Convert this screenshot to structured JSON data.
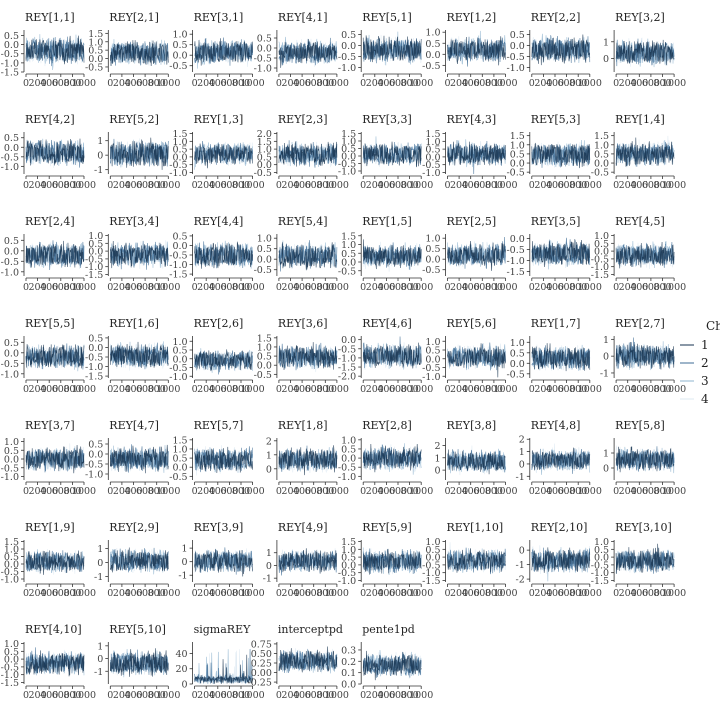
{
  "chart_data": {
    "type": "line",
    "description_free": true,
    "x_tick_labels": [
      "0",
      "200",
      "400",
      "600",
      "800",
      "1000"
    ],
    "xlim": [
      0,
      1000
    ],
    "grid": false,
    "legend": {
      "title": "Chain",
      "placement": "right",
      "entries": [
        {
          "label": "1",
          "color": "#16324f"
        },
        {
          "label": "2",
          "color": "#3d6b94"
        },
        {
          "label": "3",
          "color": "#8fb4cf"
        },
        {
          "label": "4",
          "color": "#dde9f2"
        }
      ]
    },
    "panels": [
      {
        "title": "REY[1,1]",
        "ylim": [
          -1.5,
          0.8
        ],
        "ticks": [
          -1.5,
          -1.0,
          -0.5,
          0.0,
          0.5
        ],
        "tick_labels": [
          "-1.5",
          "-1.0",
          "-0.5",
          "0.0",
          "0.5"
        ],
        "center": -0.35,
        "sd": 0.45
      },
      {
        "title": "REY[2,1]",
        "ylim": [
          -0.8,
          1.7
        ],
        "ticks": [
          -0.5,
          0.0,
          0.5,
          1.0,
          1.5
        ],
        "tick_labels": [
          "-0.5",
          "0.0",
          "0.5",
          "1.0",
          "1.5"
        ],
        "center": 0.3,
        "sd": 0.45
      },
      {
        "title": "REY[3,1]",
        "ylim": [
          -0.8,
          1.2
        ],
        "ticks": [
          -0.5,
          0.0,
          0.5,
          1.0
        ],
        "tick_labels": [
          "-0.5",
          "0.0",
          "0.5",
          "1.0"
        ],
        "center": 0.15,
        "sd": 0.35
      },
      {
        "title": "REY[4,1]",
        "ylim": [
          -1.2,
          0.9
        ],
        "ticks": [
          -1.0,
          -0.5,
          0.0,
          0.5
        ],
        "tick_labels": [
          "-1.0",
          "-0.5",
          "0.0",
          "0.5"
        ],
        "center": -0.2,
        "sd": 0.35
      },
      {
        "title": "REY[5,1]",
        "ylim": [
          -1.2,
          0.7
        ],
        "ticks": [
          -1.0,
          -0.5,
          0.0,
          0.5
        ],
        "tick_labels": [
          "-1.0",
          "-0.5",
          "0.0",
          "0.5"
        ],
        "center": -0.2,
        "sd": 0.35
      },
      {
        "title": "REY[1,2]",
        "ylim": [
          -0.8,
          1.1
        ],
        "ticks": [
          -0.5,
          0.0,
          0.5,
          1.0
        ],
        "tick_labels": [
          "-0.5",
          "0.0",
          "0.5",
          "1.0"
        ],
        "center": 0.2,
        "sd": 0.35
      },
      {
        "title": "REY[2,2]",
        "ylim": [
          -1.2,
          0.7
        ],
        "ticks": [
          -1.0,
          -0.5,
          0.0,
          0.5
        ],
        "tick_labels": [
          "-1.0",
          "-0.5",
          "0.0",
          "0.5"
        ],
        "center": -0.2,
        "sd": 0.35
      },
      {
        "title": "REY[3,2]",
        "ylim": [
          -0.8,
          1.7
        ],
        "ticks": [
          0,
          1
        ],
        "tick_labels": [
          "0",
          "1"
        ],
        "center": 0.35,
        "sd": 0.45
      },
      {
        "title": "REY[4,2]",
        "ylim": [
          -1.4,
          0.8
        ],
        "ticks": [
          -1.0,
          -0.5,
          0.0,
          0.5
        ],
        "tick_labels": [
          "-1.0",
          "-0.5",
          "0.0",
          "0.5"
        ],
        "center": -0.3,
        "sd": 0.4
      },
      {
        "title": "REY[5,2]",
        "ylim": [
          -1.3,
          1.6
        ],
        "ticks": [
          -1,
          0,
          1
        ],
        "tick_labels": [
          "-1",
          "0",
          "1"
        ],
        "center": 0.1,
        "sd": 0.55
      },
      {
        "title": "REY[1,3]",
        "ylim": [
          -1.1,
          1.6
        ],
        "ticks": [
          -1.0,
          -0.5,
          0.0,
          0.5,
          1.0,
          1.5
        ],
        "tick_labels": [
          "-1.0",
          "-0.5",
          "0.0",
          "0.5",
          "1.0",
          "1.5"
        ],
        "center": 0.2,
        "sd": 0.45
      },
      {
        "title": "REY[2,3]",
        "ylim": [
          -0.6,
          2.1
        ],
        "ticks": [
          -0.5,
          0.0,
          0.5,
          1.0,
          1.5,
          2.0
        ],
        "tick_labels": [
          "-0.5",
          "0.0",
          "0.5",
          "1.0",
          "1.5",
          "2.0"
        ],
        "center": 0.65,
        "sd": 0.45
      },
      {
        "title": "REY[3,3]",
        "ylim": [
          -1.2,
          1.6
        ],
        "ticks": [
          -1.0,
          -0.5,
          0.0,
          0.5,
          1.0,
          1.5
        ],
        "tick_labels": [
          "-1.0",
          "-0.5",
          "0.0",
          "0.5",
          "1.0",
          "1.5"
        ],
        "center": 0.1,
        "sd": 0.45
      },
      {
        "title": "REY[4,3]",
        "ylim": [
          -1.1,
          1.6
        ],
        "ticks": [
          -1.0,
          -0.5,
          0.0,
          0.5,
          1.0,
          1.5
        ],
        "tick_labels": [
          "-1.0",
          "-0.5",
          "0.0",
          "0.5",
          "1.0",
          "1.5"
        ],
        "center": 0.2,
        "sd": 0.45
      },
      {
        "title": "REY[5,3]",
        "ylim": [
          -0.6,
          1.7
        ],
        "ticks": [
          -0.5,
          0.0,
          0.5,
          1.0,
          1.5
        ],
        "tick_labels": [
          "-0.5",
          "0.0",
          "0.5",
          "1.0",
          "1.5"
        ],
        "center": 0.45,
        "sd": 0.4
      },
      {
        "title": "REY[1,4]",
        "ylim": [
          -0.6,
          1.7
        ],
        "ticks": [
          -0.5,
          0.0,
          0.5,
          1.0,
          1.5
        ],
        "tick_labels": [
          "-0.5",
          "0.0",
          "0.5",
          "1.0",
          "1.5"
        ],
        "center": 0.5,
        "sd": 0.4
      },
      {
        "title": "REY[2,4]",
        "ylim": [
          -1.2,
          0.8
        ],
        "ticks": [
          -1.0,
          -0.5,
          0.0,
          0.5
        ],
        "tick_labels": [
          "-1.0",
          "-0.5",
          "0.0",
          "0.5"
        ],
        "center": -0.2,
        "sd": 0.35
      },
      {
        "title": "REY[3,4]",
        "ylim": [
          -1.6,
          1.1
        ],
        "ticks": [
          -1.5,
          -1.0,
          -0.5,
          0.0,
          0.5,
          1.0
        ],
        "tick_labels": [
          "-1.5",
          "-1.0",
          "-0.5",
          "0.0",
          "0.5",
          "1.0"
        ],
        "center": -0.25,
        "sd": 0.45
      },
      {
        "title": "REY[4,4]",
        "ylim": [
          -1.6,
          0.6
        ],
        "ticks": [
          -1.5,
          -1.0,
          -0.5,
          0.0,
          0.5
        ],
        "tick_labels": [
          "-1.5",
          "-1.0",
          "-0.5",
          "0.0",
          "0.5"
        ],
        "center": -0.5,
        "sd": 0.4
      },
      {
        "title": "REY[5,4]",
        "ylim": [
          -0.8,
          1.2
        ],
        "ticks": [
          -0.5,
          0.0,
          0.5,
          1.0
        ],
        "tick_labels": [
          "-0.5",
          "0.0",
          "0.5",
          "1.0"
        ],
        "center": 0.15,
        "sd": 0.35
      },
      {
        "title": "REY[1,5]",
        "ylim": [
          -0.8,
          1.6
        ],
        "ticks": [
          -0.5,
          0.0,
          0.5,
          1.0,
          1.5
        ],
        "tick_labels": [
          "-0.5",
          "0.0",
          "0.5",
          "1.0",
          "1.5"
        ],
        "center": 0.35,
        "sd": 0.4
      },
      {
        "title": "REY[2,5]",
        "ylim": [
          -0.8,
          1.2
        ],
        "ticks": [
          -0.5,
          0.0,
          0.5,
          1.0
        ],
        "tick_labels": [
          "-0.5",
          "0.0",
          "0.5",
          "1.0"
        ],
        "center": 0.2,
        "sd": 0.35
      },
      {
        "title": "REY[3,5]",
        "ylim": [
          -1.7,
          0.2
        ],
        "ticks": [
          -1.5,
          -1.0,
          -0.5,
          0.0
        ],
        "tick_labels": [
          "-1.5",
          "-1.0",
          "-0.5",
          "0.0"
        ],
        "center": -0.7,
        "sd": 0.35
      },
      {
        "title": "REY[4,5]",
        "ylim": [
          -1.6,
          1.1
        ],
        "ticks": [
          -1.5,
          -1.0,
          -0.5,
          0.0,
          0.5,
          1.0
        ],
        "tick_labels": [
          "-1.5",
          "-1.0",
          "-0.5",
          "0.0",
          "0.5",
          "1.0"
        ],
        "center": -0.25,
        "sd": 0.45
      },
      {
        "title": "REY[5,5]",
        "ylim": [
          -1.2,
          0.8
        ],
        "ticks": [
          -1.0,
          -0.5,
          0.0,
          0.5
        ],
        "tick_labels": [
          "-1.0",
          "-0.5",
          "0.0",
          "0.5"
        ],
        "center": -0.2,
        "sd": 0.35
      },
      {
        "title": "REY[1,6]",
        "ylim": [
          -1.6,
          0.6
        ],
        "ticks": [
          -1.5,
          -1.0,
          -0.5,
          0.0,
          0.5
        ],
        "tick_labels": [
          "-1.5",
          "-1.0",
          "-0.5",
          "0.0",
          "0.5"
        ],
        "center": -0.45,
        "sd": 0.4
      },
      {
        "title": "REY[2,6]",
        "ylim": [
          -1.1,
          1.3
        ],
        "ticks": [
          -1.0,
          -0.5,
          0.0,
          0.5,
          1.0
        ],
        "tick_labels": [
          "-1.0",
          "-0.5",
          "0.0",
          "0.5",
          "1.0"
        ],
        "center": -0.1,
        "sd": 0.35
      },
      {
        "title": "REY[3,6]",
        "ylim": [
          -0.7,
          1.6
        ],
        "ticks": [
          -0.5,
          0.0,
          0.5,
          1.0,
          1.5
        ],
        "tick_labels": [
          "-0.5",
          "0.0",
          "0.5",
          "1.0",
          "1.5"
        ],
        "center": 0.45,
        "sd": 0.4
      },
      {
        "title": "REY[4,6]",
        "ylim": [
          -2.1,
          0.2
        ],
        "ticks": [
          -2.0,
          -1.5,
          -1.0,
          -0.5,
          0.0
        ],
        "tick_labels": [
          "-2.0",
          "-1.5",
          "-1.0",
          "-0.5",
          "0.0"
        ],
        "center": -0.9,
        "sd": 0.4
      },
      {
        "title": "REY[5,6]",
        "ylim": [
          -1.1,
          1.3
        ],
        "ticks": [
          -1.0,
          -0.5,
          0.0,
          0.5,
          1.0
        ],
        "tick_labels": [
          "-1.0",
          "-0.5",
          "0.0",
          "0.5",
          "1.0"
        ],
        "center": 0.1,
        "sd": 0.4
      },
      {
        "title": "REY[1,7]",
        "ylim": [
          -0.7,
          1.3
        ],
        "ticks": [
          -0.5,
          0.0,
          0.5,
          1.0
        ],
        "tick_labels": [
          "-0.5",
          "0.0",
          "0.5",
          "1.0"
        ],
        "center": 0.25,
        "sd": 0.35
      },
      {
        "title": "REY[2,7]",
        "ylim": [
          -1.3,
          1.2
        ],
        "ticks": [
          -1,
          0,
          1
        ],
        "tick_labels": [
          "-1",
          "0",
          "1"
        ],
        "center": 0.0,
        "sd": 0.45
      },
      {
        "title": "REY[3,7]",
        "ylim": [
          -1.2,
          1.2
        ],
        "ticks": [
          -1.0,
          -0.5,
          0.0,
          0.5,
          1.0
        ],
        "tick_labels": [
          "-1.0",
          "-0.5",
          "0.0",
          "0.5",
          "1.0"
        ],
        "center": 0.0,
        "sd": 0.4
      },
      {
        "title": "REY[4,7]",
        "ylim": [
          -1.3,
          0.8
        ],
        "ticks": [
          -1.0,
          -0.5,
          0.0,
          0.5
        ],
        "tick_labels": [
          "-1.0",
          "-0.5",
          "0.0",
          "0.5"
        ],
        "center": -0.25,
        "sd": 0.35
      },
      {
        "title": "REY[5,7]",
        "ylim": [
          -0.7,
          1.6
        ],
        "ticks": [
          -0.5,
          0.0,
          0.5,
          1.0,
          1.5
        ],
        "tick_labels": [
          "-0.5",
          "0.0",
          "0.5",
          "1.0",
          "1.5"
        ],
        "center": 0.4,
        "sd": 0.4
      },
      {
        "title": "REY[1,8]",
        "ylim": [
          -0.8,
          2.2
        ],
        "ticks": [
          0,
          1,
          2
        ],
        "tick_labels": [
          "0",
          "1",
          "2"
        ],
        "center": 0.6,
        "sd": 0.5
      },
      {
        "title": "REY[2,8]",
        "ylim": [
          -1.2,
          1.1
        ],
        "ticks": [
          -1.0,
          -0.5,
          0.0,
          0.5,
          1.0
        ],
        "tick_labels": [
          "-1.0",
          "-0.5",
          "0.0",
          "0.5",
          "1.0"
        ],
        "center": 0.0,
        "sd": 0.4
      },
      {
        "title": "REY[3,8]",
        "ylim": [
          -0.8,
          2.6
        ],
        "ticks": [
          0,
          1,
          2
        ],
        "tick_labels": [
          "0",
          "1",
          "2"
        ],
        "center": 0.7,
        "sd": 0.55
      },
      {
        "title": "REY[4,8]",
        "ylim": [
          -1.3,
          2.1
        ],
        "ticks": [
          -1,
          0,
          1,
          2
        ],
        "tick_labels": [
          "-1",
          "0",
          "1",
          "2"
        ],
        "center": 0.3,
        "sd": 0.55
      },
      {
        "title": "REY[5,8]",
        "ylim": [
          -0.8,
          2.0
        ],
        "ticks": [
          0,
          1
        ],
        "tick_labels": [
          "0",
          "1"
        ],
        "center": 0.55,
        "sd": 0.45
      },
      {
        "title": "REY[1,9]",
        "ylim": [
          -1.2,
          1.6
        ],
        "ticks": [
          -1.0,
          -0.5,
          0.0,
          0.5,
          1.0,
          1.5
        ],
        "tick_labels": [
          "-1.0",
          "-0.5",
          "0.0",
          "0.5",
          "1.0",
          "1.5"
        ],
        "center": 0.15,
        "sd": 0.45
      },
      {
        "title": "REY[2,9]",
        "ylim": [
          -1.4,
          1.6
        ],
        "ticks": [
          -1,
          0,
          1
        ],
        "tick_labels": [
          "-1",
          "0",
          "1"
        ],
        "center": 0.1,
        "sd": 0.5
      },
      {
        "title": "REY[3,9]",
        "ylim": [
          -1.5,
          1.6
        ],
        "ticks": [
          -1,
          0,
          1
        ],
        "tick_labels": [
          "-1",
          "0",
          "1"
        ],
        "center": 0.05,
        "sd": 0.5
      },
      {
        "title": "REY[4,9]",
        "ylim": [
          -1.3,
          2.0
        ],
        "ticks": [
          -1,
          0,
          1
        ],
        "tick_labels": [
          "-1",
          "0",
          "1"
        ],
        "center": 0.35,
        "sd": 0.55
      },
      {
        "title": "REY[5,9]",
        "ylim": [
          -1.1,
          1.6
        ],
        "ticks": [
          -1.0,
          -0.5,
          0.0,
          0.5,
          1.0,
          1.5
        ],
        "tick_labels": [
          "-1.0",
          "-0.5",
          "0.0",
          "0.5",
          "1.0",
          "1.5"
        ],
        "center": 0.2,
        "sd": 0.45
      },
      {
        "title": "REY[1,10]",
        "ylim": [
          -1.6,
          1.1
        ],
        "ticks": [
          -1.5,
          -1.0,
          -0.5,
          0.0,
          0.5,
          1.0
        ],
        "tick_labels": [
          "-1.5",
          "-1.0",
          "-0.5",
          "0.0",
          "0.5",
          "1.0"
        ],
        "center": -0.25,
        "sd": 0.45
      },
      {
        "title": "REY[2,10]",
        "ylim": [
          -2.2,
          0.7
        ],
        "ticks": [
          -2,
          -1,
          0
        ],
        "tick_labels": [
          "-2",
          "-1",
          "0"
        ],
        "center": -0.7,
        "sd": 0.5
      },
      {
        "title": "REY[3,10]",
        "ylim": [
          -1.6,
          1.1
        ],
        "ticks": [
          -1.5,
          -1.0,
          -0.5,
          0.0,
          0.5,
          1.0
        ],
        "tick_labels": [
          "-1.5",
          "-1.0",
          "-0.5",
          "0.0",
          "0.5",
          "1.0"
        ],
        "center": -0.25,
        "sd": 0.45
      },
      {
        "title": "REY[4,10]",
        "ylim": [
          -1.6,
          1.1
        ],
        "ticks": [
          -1.5,
          -1.0,
          -0.5,
          0.0,
          0.5,
          1.0
        ],
        "tick_labels": [
          "-1.5",
          "-1.0",
          "-0.5",
          "0.0",
          "0.5",
          "1.0"
        ],
        "center": -0.25,
        "sd": 0.45
      },
      {
        "title": "REY[5,10]",
        "ylim": [
          -2.0,
          1.3
        ],
        "ticks": [
          -1,
          0,
          1
        ],
        "tick_labels": [
          "-1",
          "0",
          "1"
        ],
        "center": -0.35,
        "sd": 0.55
      },
      {
        "title": "sigmaREY",
        "ylim": [
          0,
          55
        ],
        "ticks": [
          0,
          20,
          40
        ],
        "tick_labels": [
          "0",
          "20",
          "40"
        ],
        "center": 6,
        "sd": 3,
        "kind": "skewed"
      },
      {
        "title": "interceptpd",
        "ylim": [
          -0.3,
          0.8
        ],
        "ticks": [
          -0.25,
          0.0,
          0.25,
          0.5,
          0.75
        ],
        "tick_labels": [
          "-0.25",
          "0.00",
          "0.25",
          "0.50",
          "0.75"
        ],
        "center": 0.3,
        "sd": 0.18
      },
      {
        "title": "pente1pd",
        "ylim": [
          0,
          0.37
        ],
        "ticks": [
          0.0,
          0.1,
          0.2,
          0.3
        ],
        "tick_labels": [
          "0.0",
          "0.1",
          "0.2",
          "0.3"
        ],
        "center": 0.17,
        "sd": 0.06
      }
    ]
  }
}
